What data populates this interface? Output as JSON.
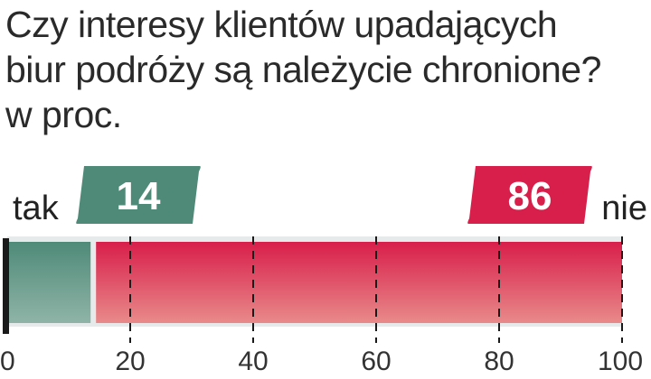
{
  "title_lines": [
    "Czy interesy klientów upadających",
    "biur podróży są należycie chronione?",
    "w proc."
  ],
  "colors": {
    "tak": "#4f8a78",
    "nie": "#d81e4a",
    "nie_light": "#e88a8a",
    "track": "#e6eaeb",
    "axis": "#1a1a1a"
  },
  "chart_data": {
    "type": "bar",
    "orientation": "horizontal-stacked",
    "title": "Czy interesy klientów upadających biur podróży są należycie chronione?",
    "subtitle": "w proc.",
    "categories": [
      "tak",
      "nie"
    ],
    "values": [
      14,
      86
    ],
    "data_labels": [
      "14",
      "86"
    ],
    "end_labels": {
      "left": "tak",
      "right": "nie"
    },
    "xlim": [
      0,
      100
    ],
    "xticks": [
      0,
      20,
      40,
      60,
      80,
      100
    ],
    "xtick_labels": [
      "0",
      "20",
      "40",
      "60",
      "80",
      "100"
    ],
    "grid": "dashed vertical"
  }
}
